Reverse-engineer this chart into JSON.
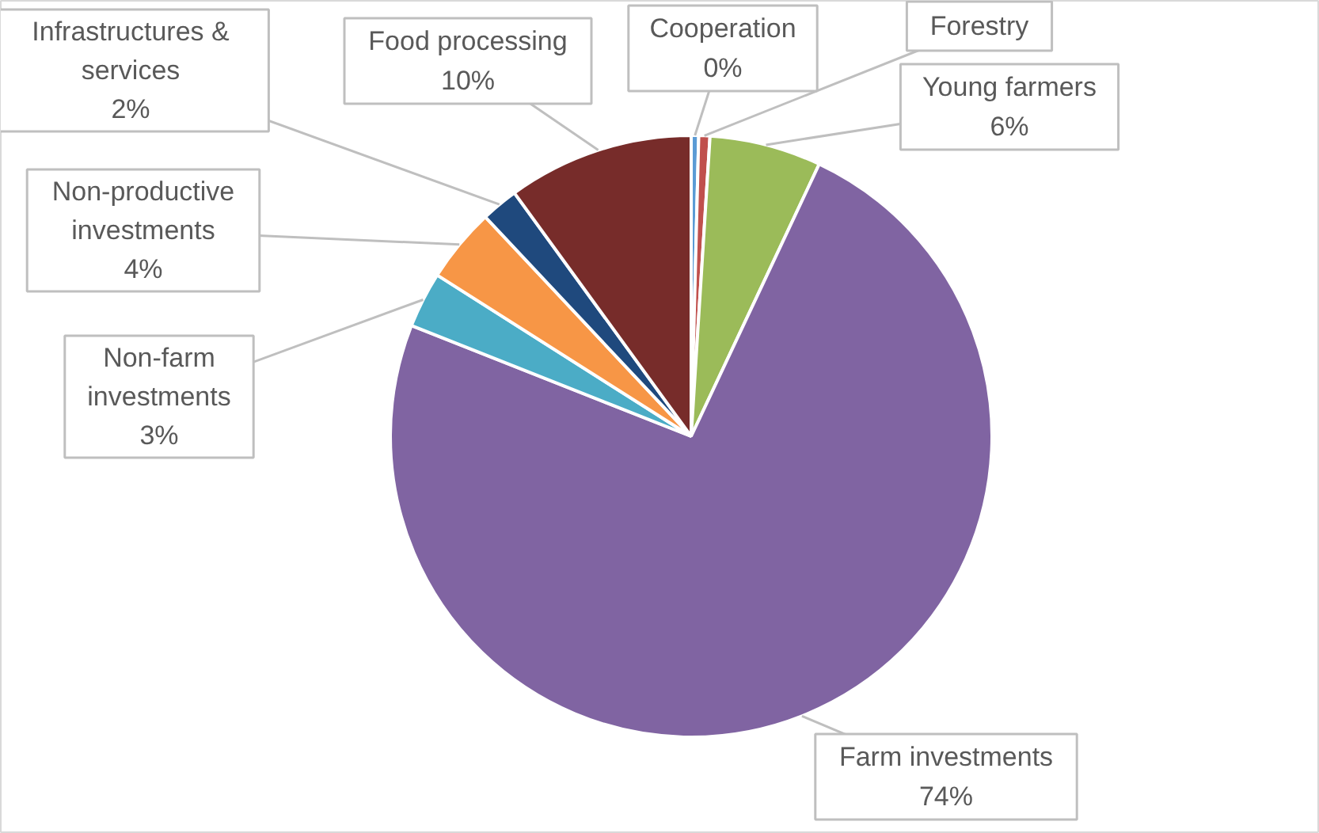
{
  "chart_data": {
    "type": "pie",
    "categories": [
      "Cooperation",
      "Forestry",
      "Young farmers",
      "Farm investments",
      "Non-farm investments",
      "Non-productive investments",
      "Infrastructures & services",
      "Food processing"
    ],
    "values": [
      0.4,
      0.6,
      6,
      74,
      3,
      4,
      2,
      10
    ],
    "value_labels": [
      "0%",
      null,
      "6%",
      "74%",
      "3%",
      "4%",
      "2%",
      "10%"
    ],
    "colors": [
      "#5b9bd5",
      "#c0504d",
      "#9bbb59",
      "#8064a2",
      "#4bacc6",
      "#f79646",
      "#1f497d",
      "#772c2a"
    ]
  }
}
